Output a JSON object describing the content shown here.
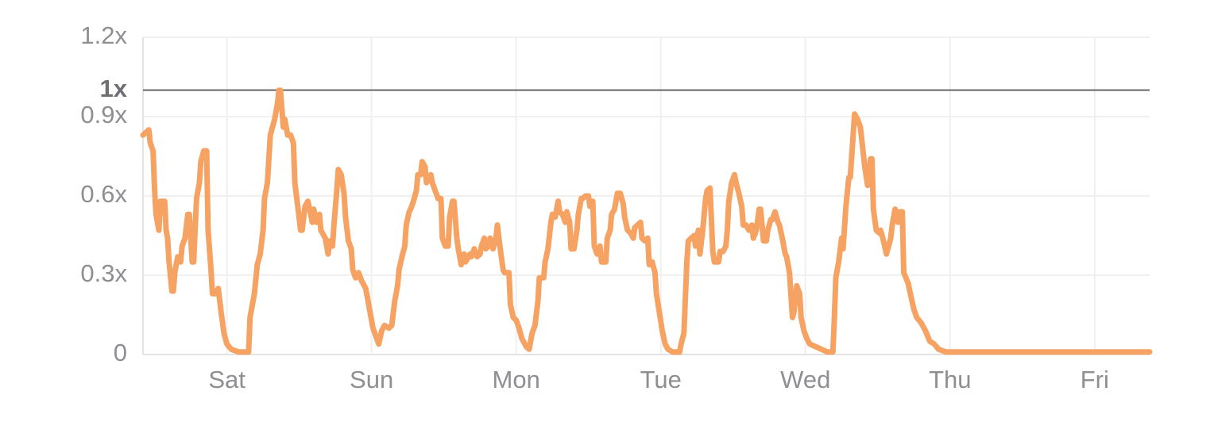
{
  "chart_data": {
    "type": "line",
    "color": "#f5a262",
    "grid": true,
    "xlim": [
      -0.58,
      6.38
    ],
    "xticks": [
      {
        "value": 0,
        "label": "Sat"
      },
      {
        "value": 1,
        "label": "Sun"
      },
      {
        "value": 2,
        "label": "Mon"
      },
      {
        "value": 3,
        "label": "Tue"
      },
      {
        "value": 4,
        "label": "Wed"
      },
      {
        "value": 5,
        "label": "Thu"
      },
      {
        "value": 6,
        "label": "Fri"
      }
    ],
    "ylim": [
      0,
      1.2
    ],
    "yticks": [
      0,
      {
        "value": 0.3,
        "label": "0.3x"
      },
      {
        "value": 0.6,
        "label": "0.6x"
      },
      {
        "value": 0.9,
        "label": "0.9x"
      },
      {
        "value": 1.2,
        "label": "1.2x"
      }
    ],
    "reference_line": {
      "value": 1,
      "label": "1x"
    },
    "x": [
      -0.58,
      -0.54,
      -0.53,
      -0.51,
      -0.5,
      -0.49,
      -0.47,
      -0.46,
      -0.43,
      -0.42,
      -0.41,
      -0.4,
      -0.38,
      -0.37,
      -0.36,
      -0.34,
      -0.32,
      -0.31,
      -0.29,
      -0.27,
      -0.26,
      -0.24,
      -0.23,
      -0.21,
      -0.19,
      -0.18,
      -0.16,
      -0.14,
      -0.13,
      -0.11,
      -0.1,
      -0.08,
      -0.06,
      -0.04,
      -0.02,
      0,
      0.03,
      0.08,
      0.13,
      0.15,
      0.16,
      0.19,
      0.21,
      0.23,
      0.25,
      0.26,
      0.28,
      0.3,
      0.31,
      0.33,
      0.35,
      0.36,
      0.37,
      0.39,
      0.4,
      0.42,
      0.44,
      0.46,
      0.47,
      0.49,
      0.51,
      0.52,
      0.54,
      0.56,
      0.58,
      0.59,
      0.6,
      0.62,
      0.64,
      0.65,
      0.68,
      0.7,
      0.71,
      0.73,
      0.74,
      0.76,
      0.77,
      0.79,
      0.81,
      0.82,
      0.84,
      0.86,
      0.87,
      0.89,
      0.91,
      0.93,
      0.96,
      0.97,
      0.99,
      1.01,
      1.03,
      1.05,
      1.07,
      1.09,
      1.12,
      1.14,
      1.16,
      1.18,
      1.19,
      1.21,
      1.23,
      1.24,
      1.26,
      1.27,
      1.29,
      1.31,
      1.32,
      1.34,
      1.35,
      1.37,
      1.38,
      1.41,
      1.42,
      1.44,
      1.46,
      1.48,
      1.49,
      1.51,
      1.53,
      1.54,
      1.56,
      1.57,
      1.59,
      1.6,
      1.62,
      1.64,
      1.65,
      1.68,
      1.69,
      1.71,
      1.73,
      1.75,
      1.76,
      1.78,
      1.79,
      1.81,
      1.82,
      1.84,
      1.86,
      1.87,
      1.89,
      1.91,
      1.92,
      1.95,
      1.96,
      1.98,
      2.0,
      2.02,
      2.04,
      2.07,
      2.09,
      2.11,
      2.13,
      2.15,
      2.16,
      2.19,
      2.2,
      2.22,
      2.24,
      2.25,
      2.27,
      2.29,
      2.3,
      2.32,
      2.34,
      2.35,
      2.37,
      2.38,
      2.4,
      2.42,
      2.43,
      2.45,
      2.46,
      2.48,
      2.5,
      2.51,
      2.53,
      2.54,
      2.56,
      2.58,
      2.59,
      2.62,
      2.63,
      2.65,
      2.66,
      2.68,
      2.7,
      2.72,
      2.74,
      2.75,
      2.77,
      2.79,
      2.81,
      2.82,
      2.84,
      2.86,
      2.87,
      2.89,
      2.91,
      2.92,
      2.94,
      2.96,
      2.97,
      2.99,
      3.01,
      3.03,
      3.05,
      3.08,
      3.1,
      3.13,
      3.14,
      3.16,
      3.18,
      3.19,
      3.21,
      3.23,
      3.24,
      3.26,
      3.27,
      3.29,
      3.31,
      3.32,
      3.34,
      3.36,
      3.37,
      3.4,
      3.41,
      3.43,
      3.45,
      3.46,
      3.47,
      3.49,
      3.51,
      3.52,
      3.54,
      3.56,
      3.57,
      3.59,
      3.61,
      3.63,
      3.64,
      3.66,
      3.68,
      3.69,
      3.71,
      3.73,
      3.74,
      3.76,
      3.77,
      3.79,
      3.81,
      3.82,
      3.84,
      3.86,
      3.87,
      3.89,
      3.91,
      3.92,
      3.94,
      3.96,
      3.97,
      3.99,
      4.01,
      4.03,
      4.07,
      4.11,
      4.15,
      4.19,
      4.2,
      4.21,
      4.23,
      4.25,
      4.26,
      4.28,
      4.3,
      4.31,
      4.33,
      4.34,
      4.36,
      4.38,
      4.4,
      4.41,
      4.43,
      4.45,
      4.46,
      4.47,
      4.49,
      4.51,
      4.52,
      4.54,
      4.56,
      4.57,
      4.59,
      4.6,
      4.62,
      4.64,
      4.65,
      4.67,
      4.68,
      4.71,
      4.73,
      4.75,
      4.77,
      4.8,
      4.83,
      4.86,
      4.89,
      4.92,
      4.97,
      5.02,
      5.35,
      5.68,
      6.01,
      6.38
    ],
    "values": [
      0.83,
      0.85,
      0.8,
      0.77,
      0.62,
      0.53,
      0.47,
      0.58,
      0.58,
      0.47,
      0.44,
      0.35,
      0.24,
      0.24,
      0.31,
      0.37,
      0.35,
      0.41,
      0.44,
      0.53,
      0.53,
      0.35,
      0.35,
      0.59,
      0.65,
      0.73,
      0.77,
      0.77,
      0.47,
      0.32,
      0.23,
      0.23,
      0.25,
      0.16,
      0.08,
      0.04,
      0.02,
      0.01,
      0.01,
      0.01,
      0.14,
      0.23,
      0.34,
      0.38,
      0.47,
      0.59,
      0.65,
      0.83,
      0.85,
      0.89,
      0.95,
      1.0,
      1.0,
      0.86,
      0.89,
      0.83,
      0.83,
      0.8,
      0.65,
      0.56,
      0.47,
      0.47,
      0.56,
      0.58,
      0.53,
      0.5,
      0.55,
      0.5,
      0.53,
      0.47,
      0.44,
      0.38,
      0.43,
      0.41,
      0.49,
      0.62,
      0.7,
      0.68,
      0.61,
      0.52,
      0.43,
      0.4,
      0.32,
      0.29,
      0.31,
      0.28,
      0.25,
      0.22,
      0.16,
      0.1,
      0.07,
      0.04,
      0.09,
      0.11,
      0.1,
      0.11,
      0.2,
      0.26,
      0.32,
      0.37,
      0.41,
      0.49,
      0.54,
      0.55,
      0.58,
      0.62,
      0.68,
      0.68,
      0.73,
      0.71,
      0.65,
      0.68,
      0.65,
      0.62,
      0.59,
      0.59,
      0.44,
      0.41,
      0.41,
      0.52,
      0.58,
      0.58,
      0.44,
      0.4,
      0.34,
      0.38,
      0.35,
      0.38,
      0.37,
      0.4,
      0.37,
      0.38,
      0.41,
      0.44,
      0.4,
      0.41,
      0.44,
      0.4,
      0.44,
      0.49,
      0.4,
      0.32,
      0.31,
      0.31,
      0.19,
      0.14,
      0.13,
      0.1,
      0.06,
      0.03,
      0.02,
      0.08,
      0.11,
      0.2,
      0.29,
      0.29,
      0.35,
      0.4,
      0.5,
      0.53,
      0.52,
      0.58,
      0.54,
      0.53,
      0.5,
      0.54,
      0.5,
      0.4,
      0.4,
      0.47,
      0.53,
      0.59,
      0.59,
      0.6,
      0.6,
      0.56,
      0.58,
      0.41,
      0.38,
      0.41,
      0.35,
      0.35,
      0.44,
      0.47,
      0.53,
      0.55,
      0.61,
      0.61,
      0.57,
      0.52,
      0.47,
      0.46,
      0.44,
      0.48,
      0.49,
      0.5,
      0.44,
      0.43,
      0.44,
      0.34,
      0.35,
      0.31,
      0.23,
      0.16,
      0.09,
      0.04,
      0.02,
      0.01,
      0.01,
      0.01,
      0.04,
      0.08,
      0.35,
      0.43,
      0.44,
      0.45,
      0.41,
      0.47,
      0.38,
      0.47,
      0.59,
      0.62,
      0.63,
      0.39,
      0.35,
      0.35,
      0.39,
      0.39,
      0.41,
      0.47,
      0.58,
      0.65,
      0.68,
      0.65,
      0.61,
      0.56,
      0.49,
      0.49,
      0.47,
      0.49,
      0.44,
      0.47,
      0.55,
      0.55,
      0.43,
      0.43,
      0.47,
      0.51,
      0.51,
      0.54,
      0.5,
      0.49,
      0.44,
      0.38,
      0.37,
      0.31,
      0.14,
      0.16,
      0.26,
      0.23,
      0.14,
      0.09,
      0.06,
      0.04,
      0.03,
      0.02,
      0.01,
      0.01,
      0.14,
      0.29,
      0.35,
      0.44,
      0.4,
      0.56,
      0.67,
      0.67,
      0.83,
      0.91,
      0.89,
      0.86,
      0.76,
      0.71,
      0.64,
      0.74,
      0.74,
      0.55,
      0.47,
      0.46,
      0.47,
      0.43,
      0.38,
      0.4,
      0.44,
      0.49,
      0.55,
      0.5,
      0.54,
      0.54,
      0.31,
      0.27,
      0.22,
      0.17,
      0.14,
      0.12,
      0.09,
      0.05,
      0.04,
      0.02,
      0.01,
      0.01,
      0.01,
      0.01,
      0.01,
      0.01
    ]
  }
}
